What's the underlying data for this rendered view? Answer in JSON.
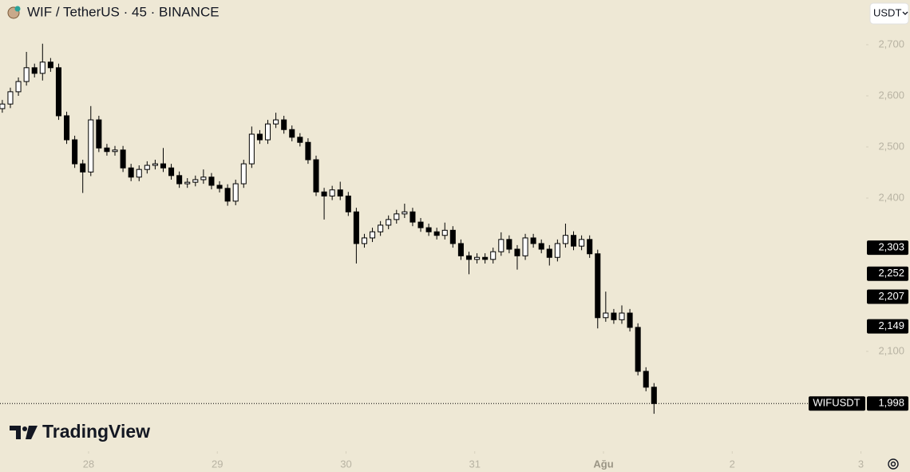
{
  "chart_data": {
    "type": "candlestick",
    "title": "WIF / TetherUS · 45 · BINANCE",
    "currency": "USDT",
    "brand": "TradingView",
    "up_color": "#ffffff",
    "down_color": "#000000",
    "x": [
      27.33,
      27.3925,
      27.455,
      27.5175,
      27.58,
      27.6425,
      27.705,
      27.7675,
      27.83,
      27.8925,
      27.955,
      28.0175,
      28.08,
      28.1425,
      28.205,
      28.2675,
      28.33,
      28.3925,
      28.455,
      28.5175,
      28.58,
      28.6425,
      28.705,
      28.7675,
      28.83,
      28.8925,
      28.955,
      29.0175,
      29.08,
      29.1425,
      29.205,
      29.2675,
      29.33,
      29.3925,
      29.455,
      29.5175,
      29.58,
      29.6425,
      29.705,
      29.7675,
      29.83,
      29.8925,
      29.955,
      30.0175,
      30.08,
      30.1425,
      30.205,
      30.2675,
      30.33,
      30.3925,
      30.455,
      30.5175,
      30.58,
      30.6425,
      30.705,
      30.7675,
      30.83,
      30.8925,
      30.955,
      31.0175,
      31.08,
      31.1425,
      31.205,
      31.2675,
      31.33,
      31.3925,
      31.455,
      31.5175,
      31.58,
      31.6425,
      31.705,
      31.7675,
      31.83,
      31.8925,
      31.955,
      32.0175,
      32.08,
      32.1425,
      32.205,
      32.2675,
      32.33,
      32.3925
    ],
    "open": [
      2.575,
      2.584,
      2.608,
      2.628,
      2.655,
      2.644,
      2.666,
      2.655,
      2.561,
      2.514,
      2.467,
      2.451,
      2.553,
      2.498,
      2.491,
      2.494,
      2.459,
      2.441,
      2.456,
      2.464,
      2.467,
      2.459,
      2.444,
      2.428,
      2.431,
      2.436,
      2.441,
      2.425,
      2.419,
      2.394,
      2.428,
      2.467,
      2.525,
      2.514,
      2.545,
      2.553,
      2.534,
      2.519,
      2.509,
      2.475,
      2.412,
      2.404,
      2.416,
      2.404,
      2.373,
      2.311,
      2.322,
      2.334,
      2.347,
      2.358,
      2.369,
      2.373,
      2.353,
      2.342,
      2.334,
      2.327,
      2.337,
      2.311,
      2.287,
      2.28,
      2.284,
      2.28,
      2.295,
      2.319,
      2.3,
      2.287,
      2.322,
      2.311,
      2.3,
      2.284,
      2.311,
      2.327,
      2.306,
      2.319,
      2.291,
      2.166,
      2.175,
      2.162,
      2.175,
      2.147,
      2.061,
      2.03
    ],
    "high": [
      2.592,
      2.616,
      2.636,
      2.686,
      2.663,
      2.702,
      2.674,
      2.663,
      2.569,
      2.522,
      2.475,
      2.58,
      2.561,
      2.506,
      2.502,
      2.502,
      2.467,
      2.464,
      2.472,
      2.475,
      2.498,
      2.467,
      2.452,
      2.439,
      2.444,
      2.456,
      2.449,
      2.433,
      2.427,
      2.436,
      2.475,
      2.54,
      2.533,
      2.553,
      2.567,
      2.561,
      2.542,
      2.527,
      2.517,
      2.483,
      2.42,
      2.424,
      2.432,
      2.412,
      2.381,
      2.33,
      2.342,
      2.355,
      2.366,
      2.377,
      2.389,
      2.381,
      2.361,
      2.35,
      2.342,
      2.352,
      2.345,
      2.319,
      2.295,
      2.292,
      2.292,
      2.303,
      2.333,
      2.327,
      2.308,
      2.33,
      2.33,
      2.319,
      2.308,
      2.319,
      2.35,
      2.335,
      2.327,
      2.327,
      2.299,
      2.217,
      2.183,
      2.19,
      2.183,
      2.155,
      2.069,
      2.038
    ],
    "low": [
      2.567,
      2.576,
      2.6,
      2.62,
      2.636,
      2.63,
      2.647,
      2.553,
      2.506,
      2.459,
      2.41,
      2.443,
      2.49,
      2.483,
      2.483,
      2.451,
      2.433,
      2.433,
      2.448,
      2.456,
      2.451,
      2.436,
      2.42,
      2.42,
      2.423,
      2.428,
      2.417,
      2.411,
      2.385,
      2.386,
      2.42,
      2.459,
      2.506,
      2.506,
      2.537,
      2.526,
      2.511,
      2.501,
      2.467,
      2.404,
      2.358,
      2.396,
      2.396,
      2.365,
      2.272,
      2.303,
      2.314,
      2.326,
      2.339,
      2.35,
      2.361,
      2.345,
      2.334,
      2.326,
      2.319,
      2.319,
      2.303,
      2.279,
      2.251,
      2.272,
      2.272,
      2.272,
      2.287,
      2.292,
      2.26,
      2.279,
      2.303,
      2.292,
      2.268,
      2.276,
      2.303,
      2.298,
      2.298,
      2.283,
      2.145,
      2.158,
      2.154,
      2.154,
      2.139,
      2.053,
      2.022,
      1.978
    ],
    "close": [
      2.584,
      2.608,
      2.628,
      2.655,
      2.644,
      2.666,
      2.655,
      2.561,
      2.514,
      2.467,
      2.451,
      2.553,
      2.498,
      2.491,
      2.494,
      2.459,
      2.441,
      2.456,
      2.464,
      2.467,
      2.459,
      2.444,
      2.428,
      2.431,
      2.436,
      2.441,
      2.425,
      2.419,
      2.394,
      2.428,
      2.467,
      2.525,
      2.514,
      2.545,
      2.553,
      2.534,
      2.519,
      2.509,
      2.475,
      2.412,
      2.404,
      2.416,
      2.404,
      2.373,
      2.311,
      2.322,
      2.334,
      2.347,
      2.358,
      2.369,
      2.373,
      2.353,
      2.342,
      2.334,
      2.327,
      2.337,
      2.311,
      2.287,
      2.28,
      2.284,
      2.28,
      2.295,
      2.319,
      2.3,
      2.287,
      2.322,
      2.311,
      2.3,
      2.284,
      2.311,
      2.327,
      2.306,
      2.319,
      2.291,
      2.166,
      2.175,
      2.162,
      2.175,
      2.147,
      2.061,
      2.03,
      1.998
    ],
    "xlim": [
      27.312,
      34.04
    ],
    "xticks": [
      28,
      29,
      30,
      31,
      {
        "value": 32,
        "label": "Ağu"
      },
      {
        "value": 33,
        "label": "2"
      },
      {
        "value": 34,
        "label": "3"
      }
    ],
    "ylim": [
      1.9047,
      2.7875
    ],
    "yticks": [
      {
        "value": 2.1,
        "label": "2,100"
      },
      {
        "value": 2.4,
        "label": "2,400"
      },
      {
        "value": 2.5,
        "label": "2,500"
      },
      {
        "value": 2.6,
        "label": "2,600"
      },
      {
        "value": 2.7,
        "label": "2,700"
      }
    ],
    "price_labels": [
      {
        "value": 2.303,
        "label": "2,303"
      },
      {
        "value": 2.252,
        "label": "2,252"
      },
      {
        "value": 2.207,
        "label": "2,207"
      },
      {
        "value": 2.149,
        "label": "2,149"
      }
    ],
    "last_price": {
      "name": "WIFUSDT",
      "value": 1.998,
      "label": "1,998"
    }
  }
}
